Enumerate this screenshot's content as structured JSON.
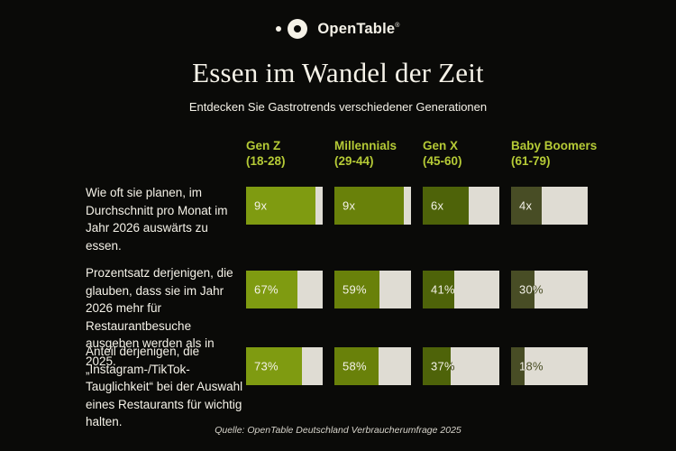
{
  "colors": {
    "background": "#0a0a08",
    "cream": "#f5f2e8",
    "header_green": "#b5ca36",
    "bar_track": "#dfdcd3",
    "label_dark": "#474c22"
  },
  "logo": {
    "brand": "OpenTable",
    "registered_mark": "®"
  },
  "header": {
    "title": "Essen im Wandel der Zeit",
    "subtitle": "Entdecken Sie Gastrotrends verschiedener Generationen"
  },
  "chart_data": {
    "type": "bar",
    "orientation": "horizontal",
    "legend_position": "top",
    "grid": false,
    "categories": [
      {
        "name": "Gen Z",
        "age_range": "(18-28)",
        "color": "#7f9b11"
      },
      {
        "name": "Millennials",
        "age_range": "(29-44)",
        "color": "#69810a"
      },
      {
        "name": "Gen X",
        "age_range": "(45-60)",
        "color": "#4e6309"
      },
      {
        "name": "Baby Boomers",
        "age_range": "(61-79)",
        "color": "#484d25"
      }
    ],
    "rows": [
      {
        "question": "Wie oft sie planen, im Durchschnitt pro Monat im Jahr 2026 auswärts zu essen.",
        "max": 10,
        "values": [
          9,
          9,
          6,
          4
        ],
        "labels": [
          "9x",
          "9x",
          "6x",
          "4x"
        ]
      },
      {
        "question": "Prozentsatz derjenigen, die glauben, dass sie im Jahr 2026 mehr für Restaurantbesuche ausgeben werden als in 2025.",
        "max": 100,
        "values": [
          67,
          59,
          41,
          30
        ],
        "labels": [
          "67%",
          "59%",
          "41%",
          "30%"
        ]
      },
      {
        "question": "Anteil derjenigen, die „Instagram-/TikTok-Tauglichkeit“ bei der Auswahl eines Restaurants für wichtig halten.",
        "max": 100,
        "values": [
          73,
          58,
          37,
          18
        ],
        "labels": [
          "73%",
          "58%",
          "37%",
          "18%"
        ]
      }
    ]
  },
  "footer": {
    "source": "Quelle: OpenTable Deutschland Verbraucherumfrage 2025"
  }
}
